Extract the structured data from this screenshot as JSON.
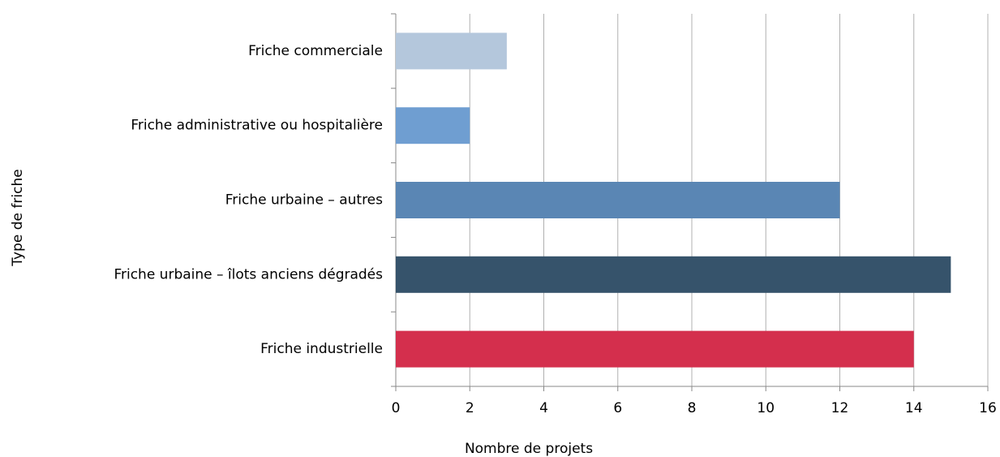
{
  "chart_data": {
    "type": "bar",
    "orientation": "horizontal",
    "categories": [
      "Friche commerciale",
      "Friche administrative ou hospitalière",
      "Friche urbaine – autres",
      "Friche urbaine – îlots anciens dégradés",
      "Friche industrielle"
    ],
    "values": [
      3,
      2,
      12,
      15,
      14
    ],
    "colors": [
      "#b4c7dc",
      "#6f9ed1",
      "#5a86b4",
      "#36536b",
      "#d42f4d"
    ],
    "xlabel": "Nombre de projets",
    "ylabel": "Type de friche",
    "xlim": [
      0,
      16
    ],
    "xticks": [
      0,
      2,
      4,
      6,
      8,
      10,
      12,
      14,
      16
    ],
    "grid": true
  }
}
